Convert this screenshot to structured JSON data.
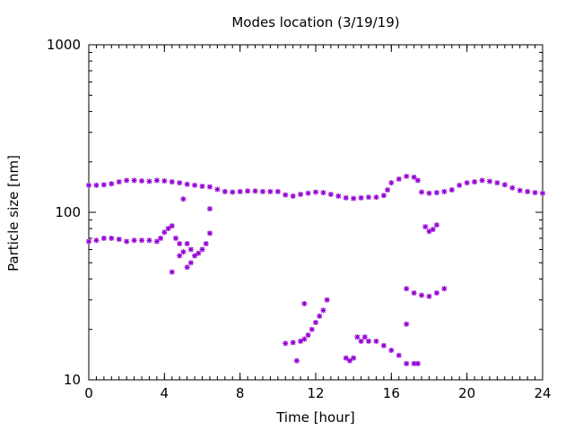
{
  "chart_data": {
    "type": "scatter",
    "title": "Modes location (3/19/19)",
    "xlabel": "Time [hour]",
    "ylabel": "Particle size [nm]",
    "xlim": [
      0,
      24
    ],
    "ylim": [
      10,
      1000
    ],
    "yscale": "log",
    "xticks": [
      0,
      4,
      8,
      12,
      16,
      20,
      24
    ],
    "xtick_labels": [
      "0",
      "4",
      "8",
      "12",
      "16",
      "20",
      "24"
    ],
    "yticks": [
      10,
      100,
      1000
    ],
    "ytick_labels": [
      "10",
      "100",
      "1000"
    ],
    "grid": false,
    "legend": "none",
    "marker_color": "#9400d3",
    "series": [
      {
        "points": [
          [
            0.0,
            145
          ],
          [
            0.4,
            145
          ],
          [
            0.8,
            146
          ],
          [
            1.2,
            148
          ],
          [
            1.6,
            152
          ],
          [
            2.0,
            155
          ],
          [
            2.4,
            155
          ],
          [
            2.8,
            154
          ],
          [
            3.2,
            153
          ],
          [
            3.6,
            155
          ],
          [
            4.0,
            154
          ],
          [
            4.4,
            152
          ],
          [
            4.8,
            150
          ],
          [
            5.2,
            147
          ],
          [
            5.6,
            145
          ],
          [
            6.0,
            143
          ],
          [
            6.4,
            142
          ],
          [
            6.8,
            137
          ],
          [
            7.2,
            133
          ],
          [
            7.6,
            132
          ],
          [
            8.0,
            133
          ],
          [
            8.4,
            134
          ],
          [
            8.8,
            134
          ],
          [
            9.2,
            133
          ],
          [
            9.6,
            133
          ],
          [
            10.0,
            133
          ],
          [
            10.4,
            127
          ],
          [
            10.8,
            125
          ],
          [
            11.2,
            128
          ],
          [
            11.6,
            130
          ],
          [
            12.0,
            132
          ],
          [
            12.4,
            131
          ],
          [
            12.8,
            128
          ],
          [
            13.2,
            125
          ],
          [
            13.6,
            122
          ],
          [
            14.0,
            121
          ],
          [
            14.4,
            122
          ],
          [
            14.8,
            123
          ],
          [
            15.2,
            123
          ],
          [
            15.6,
            126
          ],
          [
            15.8,
            136
          ],
          [
            16.0,
            150
          ],
          [
            16.4,
            158
          ],
          [
            16.8,
            164
          ],
          [
            17.2,
            162
          ],
          [
            17.4,
            155
          ],
          [
            17.6,
            132
          ],
          [
            18.0,
            130
          ],
          [
            18.4,
            131
          ],
          [
            18.8,
            133
          ],
          [
            19.2,
            136
          ],
          [
            19.6,
            145
          ],
          [
            20.0,
            150
          ],
          [
            20.4,
            152
          ],
          [
            20.8,
            155
          ],
          [
            21.2,
            153
          ],
          [
            21.6,
            150
          ],
          [
            22.0,
            146
          ],
          [
            22.4,
            140
          ],
          [
            22.8,
            135
          ],
          [
            23.2,
            133
          ],
          [
            23.6,
            131
          ],
          [
            24.0,
            130
          ],
          [
            0.0,
            67
          ],
          [
            0.4,
            68
          ],
          [
            0.8,
            70
          ],
          [
            1.2,
            70
          ],
          [
            1.6,
            69
          ],
          [
            2.0,
            67
          ],
          [
            2.4,
            68
          ],
          [
            2.8,
            68
          ],
          [
            3.2,
            68
          ],
          [
            3.6,
            67
          ],
          [
            3.8,
            70
          ],
          [
            4.0,
            76
          ],
          [
            4.2,
            80
          ],
          [
            4.4,
            83
          ],
          [
            4.6,
            70
          ],
          [
            4.8,
            65
          ],
          [
            5.0,
            58
          ],
          [
            5.2,
            65
          ],
          [
            5.4,
            60
          ],
          [
            5.6,
            55
          ],
          [
            5.8,
            57
          ],
          [
            6.0,
            60
          ],
          [
            6.2,
            65
          ],
          [
            6.4,
            75
          ],
          [
            4.4,
            44
          ],
          [
            4.8,
            55
          ],
          [
            5.0,
            120
          ],
          [
            5.2,
            47
          ],
          [
            5.4,
            50
          ],
          [
            6.4,
            105
          ],
          [
            10.4,
            16.5
          ],
          [
            10.8,
            16.7
          ],
          [
            11.0,
            13.0
          ],
          [
            11.2,
            17.0
          ],
          [
            11.4,
            17.5
          ],
          [
            11.6,
            18.5
          ],
          [
            11.8,
            20.0
          ],
          [
            12.0,
            22.0
          ],
          [
            12.2,
            24.0
          ],
          [
            12.4,
            26.0
          ],
          [
            11.4,
            28.5
          ],
          [
            12.6,
            30.0
          ],
          [
            13.6,
            13.5
          ],
          [
            13.8,
            13.0
          ],
          [
            14.0,
            13.5
          ],
          [
            14.2,
            18.0
          ],
          [
            14.4,
            17.0
          ],
          [
            14.6,
            18.0
          ],
          [
            14.8,
            17.0
          ],
          [
            15.2,
            17.0
          ],
          [
            15.6,
            16.0
          ],
          [
            16.0,
            15.0
          ],
          [
            16.4,
            14.0
          ],
          [
            16.8,
            12.5
          ],
          [
            17.2,
            12.5
          ],
          [
            17.4,
            12.5
          ],
          [
            16.8,
            21.5
          ],
          [
            16.8,
            35.0
          ],
          [
            17.2,
            33.0
          ],
          [
            17.6,
            32.0
          ],
          [
            18.0,
            31.5
          ],
          [
            18.4,
            33.0
          ],
          [
            18.8,
            35.0
          ],
          [
            17.8,
            82.0
          ],
          [
            18.0,
            77.0
          ],
          [
            18.2,
            79.0
          ],
          [
            18.4,
            84.0
          ]
        ]
      }
    ]
  }
}
